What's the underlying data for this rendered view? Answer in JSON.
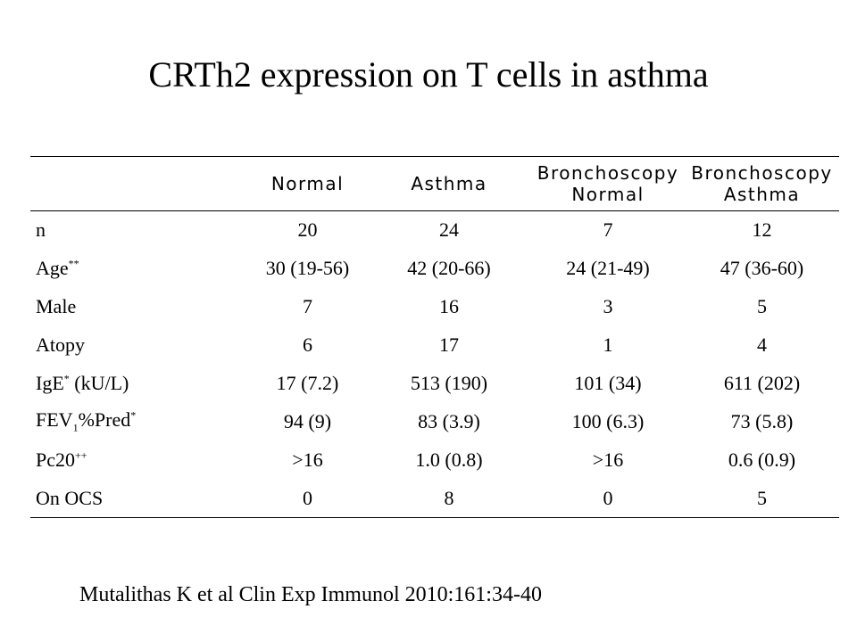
{
  "title": "CRTh2 expression on T cells in asthma",
  "table": {
    "headers": [
      {
        "line1": "",
        "line2": ""
      },
      {
        "line1": "Normal",
        "line2": ""
      },
      {
        "line1": "Asthma",
        "line2": ""
      },
      {
        "line1": "Bronchoscopy",
        "line2": "Normal"
      },
      {
        "line1": "Bronchoscopy",
        "line2": "Asthma"
      }
    ],
    "rows": [
      {
        "label": "n",
        "values": [
          "20",
          "24",
          "7",
          "12"
        ]
      },
      {
        "label": "Age",
        "sup": "**",
        "values": [
          "30 (19-56)",
          "42 (20-66)",
          "24 (21-49)",
          "47 (36-60)"
        ]
      },
      {
        "label": "Male",
        "values": [
          "7",
          "16",
          "3",
          "5"
        ]
      },
      {
        "label": "Atopy",
        "values": [
          "6",
          "17",
          "1",
          "4"
        ]
      },
      {
        "label": "IgE",
        "sup": "*",
        "label_suffix": " (kU/L)",
        "values": [
          "17 (7.2)",
          "513 (190)",
          "101 (34)",
          "611 (202)"
        ]
      },
      {
        "label": "FEV",
        "sub": "1",
        "label_suffix": "%Pred",
        "sup_end": "*",
        "values": [
          "94 (9)",
          "83 (3.9)",
          "100 (6.3)",
          "73 (5.8)"
        ]
      },
      {
        "label": "Pc20",
        "sup": "++",
        "values": [
          ">16",
          "1.0 (0.8)",
          ">16",
          "0.6 (0.9)"
        ]
      },
      {
        "label": "On OCS",
        "values": [
          "0",
          "8",
          "0",
          "5"
        ]
      }
    ]
  },
  "citation": "Mutalithas K et al Clin Exp Immunol 2010:161:34-40"
}
